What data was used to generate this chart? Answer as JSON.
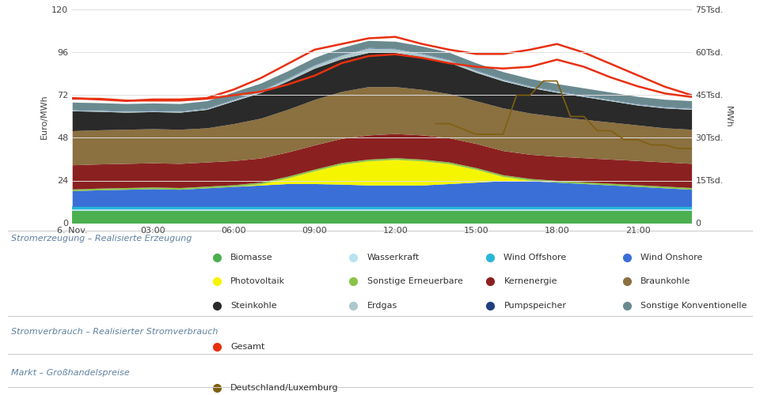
{
  "xlabel_left": "Euro/MWh",
  "xlabel_right": "MWh",
  "ylim_left": [
    0,
    120
  ],
  "ylim_right": [
    0,
    75000
  ],
  "yticks_left": [
    0,
    24,
    48,
    72,
    96,
    120
  ],
  "yticks_right": [
    0,
    15000,
    30000,
    45000,
    60000,
    75000
  ],
  "ytick_labels_right": [
    "0",
    "15Tsd.",
    "30Tsd.",
    "45Tsd.",
    "60Tsd.",
    "75Tsd."
  ],
  "xtick_labels": [
    "6. Nov.",
    "03:00",
    "06:00",
    "09:00",
    "12:00",
    "15:00",
    "18:00",
    "21:00"
  ],
  "xtick_positions": [
    0,
    3,
    6,
    9,
    12,
    15,
    18,
    21
  ],
  "hours": [
    0,
    1,
    2,
    3,
    4,
    5,
    6,
    7,
    8,
    9,
    10,
    11,
    12,
    13,
    14,
    15,
    16,
    17,
    18,
    19,
    20,
    21,
    22,
    23
  ],
  "biomasse": [
    4200,
    4200,
    4200,
    4200,
    4200,
    4200,
    4200,
    4200,
    4200,
    4200,
    4200,
    4200,
    4200,
    4200,
    4200,
    4200,
    4200,
    4200,
    4200,
    4200,
    4200,
    4200,
    4200,
    4200
  ],
  "wasserkraft": [
    800,
    800,
    800,
    800,
    800,
    800,
    800,
    800,
    800,
    800,
    800,
    800,
    800,
    800,
    800,
    800,
    800,
    800,
    800,
    800,
    800,
    800,
    800,
    800
  ],
  "wind_offshore": [
    900,
    900,
    900,
    900,
    900,
    900,
    900,
    900,
    900,
    900,
    900,
    900,
    900,
    900,
    900,
    900,
    900,
    900,
    900,
    900,
    900,
    900,
    900,
    900
  ],
  "wind_onshore": [
    5500,
    5800,
    6000,
    6200,
    6000,
    6500,
    7000,
    7500,
    8000,
    8000,
    7800,
    7500,
    7500,
    7500,
    8000,
    8500,
    9000,
    9000,
    8500,
    8000,
    7500,
    7000,
    6500,
    6000
  ],
  "photovoltaik": [
    0,
    0,
    0,
    0,
    0,
    0,
    0,
    400,
    2000,
    4500,
    7000,
    8500,
    9000,
    8500,
    7000,
    4500,
    1500,
    200,
    0,
    0,
    0,
    0,
    0,
    0
  ],
  "sonstige_ern": [
    600,
    600,
    600,
    600,
    600,
    600,
    600,
    600,
    600,
    600,
    600,
    600,
    600,
    600,
    600,
    600,
    600,
    600,
    600,
    600,
    600,
    600,
    600,
    600
  ],
  "kernenergie": [
    8500,
    8500,
    8500,
    8500,
    8500,
    8500,
    8500,
    8500,
    8500,
    8500,
    8500,
    8500,
    8500,
    8500,
    8500,
    8500,
    8500,
    8500,
    8500,
    8500,
    8500,
    8500,
    8500,
    8500
  ],
  "braunkohle": [
    12000,
    12000,
    12000,
    12000,
    12000,
    12000,
    13000,
    14000,
    15000,
    16000,
    16500,
    17000,
    16500,
    16000,
    15500,
    15000,
    15000,
    14500,
    14000,
    13500,
    13000,
    12500,
    12000,
    12000
  ],
  "steinkohle": [
    7000,
    6500,
    6000,
    6000,
    6000,
    6500,
    8000,
    9000,
    10000,
    11000,
    11500,
    12000,
    12000,
    11500,
    11000,
    10000,
    9500,
    9000,
    8500,
    8000,
    7500,
    7000,
    7000,
    7000
  ],
  "erdgas": [
    400,
    400,
    400,
    400,
    400,
    400,
    500,
    700,
    900,
    1100,
    1300,
    1600,
    1300,
    1100,
    900,
    700,
    600,
    500,
    400,
    400,
    400,
    400,
    400,
    400
  ],
  "pumpspeicher": [
    150,
    150,
    150,
    150,
    150,
    150,
    150,
    150,
    150,
    150,
    150,
    150,
    150,
    150,
    150,
    150,
    150,
    150,
    150,
    150,
    150,
    150,
    150,
    150
  ],
  "sonstige_konv": [
    2500,
    2500,
    2500,
    2500,
    2500,
    2500,
    2500,
    2500,
    2500,
    2500,
    2500,
    2500,
    2500,
    2500,
    2500,
    2500,
    2500,
    2500,
    2500,
    2500,
    2500,
    2500,
    2500,
    2500
  ],
  "gesamt_mw": [
    44000,
    43500,
    43000,
    43500,
    43500,
    44000,
    47000,
    51000,
    56000,
    61000,
    63000,
    65000,
    65500,
    63000,
    61000,
    59500,
    59500,
    61000,
    63000,
    60000,
    56000,
    52000,
    48000,
    45000
  ],
  "preis_smooth": [
    70,
    70,
    69,
    69,
    69,
    70,
    72,
    74,
    78,
    83,
    90,
    94,
    95,
    93,
    90,
    88,
    87,
    88,
    92,
    88,
    82,
    77,
    73,
    71
  ],
  "preis_step_x": [
    13.5,
    14,
    15,
    16,
    16.5,
    17,
    17.5,
    18,
    18.5,
    19,
    19.5,
    20,
    20.5,
    21,
    21.5,
    22,
    22.5,
    23
  ],
  "preis_step_y": [
    56,
    56,
    50,
    50,
    72,
    72,
    80,
    80,
    60,
    60,
    52,
    52,
    47,
    47,
    44,
    44,
    42,
    42
  ],
  "colors": {
    "biomasse": "#4caf50",
    "wasserkraft": "#b8e4f0",
    "wind_offshore": "#29b6d8",
    "wind_onshore": "#3a6fd8",
    "photovoltaik": "#f5f500",
    "sonstige_ern": "#8bc34a",
    "kernenergie": "#8b2020",
    "braunkohle": "#8b7040",
    "steinkohle": "#2a2a2a",
    "erdgas": "#adc8cc",
    "pumpspeicher": "#204080",
    "sonstige_konv": "#6a8a90",
    "gesamt": "#e83010",
    "preis": "#806010"
  },
  "background_color": "#ffffff",
  "grid_color": "#e0e0e0",
  "legend_header_color": "#6080a0",
  "legend_text_color": "#333333"
}
